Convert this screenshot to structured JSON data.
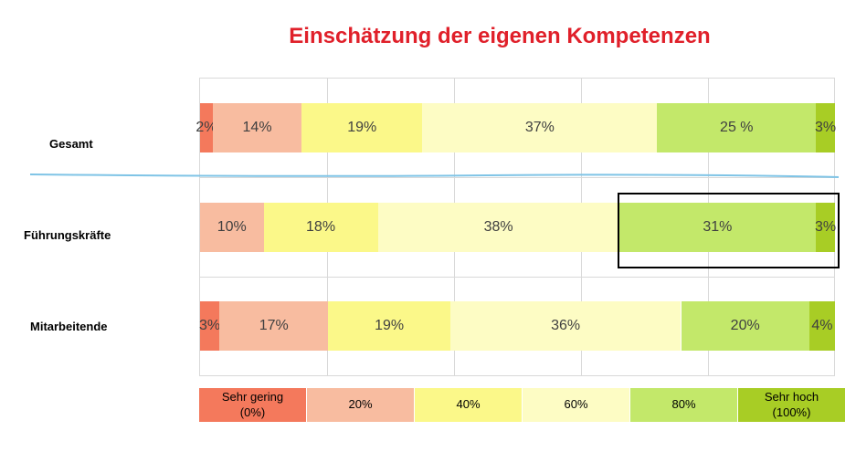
{
  "title": "Einschätzung der eigenen Kompetenzen",
  "colors": {
    "sehr_gering": "#f4795c",
    "level_20": "#f8bca0",
    "level_40": "#fbf889",
    "level_60": "#fdfcc4",
    "level_80": "#c3e86a",
    "sehr_hoch": "#a8cd25",
    "title": "#e0202a",
    "separator": "#7fc4e6"
  },
  "chart_data": {
    "type": "bar",
    "orientation": "horizontal",
    "stacked": true,
    "percent": true,
    "title": "Einschätzung der eigenen Kompetenzen",
    "categories": [
      "Gesamt",
      "Führungskräfte",
      "Mitarbeitende"
    ],
    "series": [
      {
        "name": "Sehr gering\n(0%)",
        "color_key": "sehr_gering",
        "values": [
          2,
          0,
          3
        ],
        "labels": [
          "2%",
          "",
          "3%"
        ]
      },
      {
        "name": "20%",
        "color_key": "level_20",
        "values": [
          14,
          10,
          17
        ],
        "labels": [
          "14%",
          "10%",
          "17%"
        ]
      },
      {
        "name": "40%",
        "color_key": "level_40",
        "values": [
          19,
          18,
          19
        ],
        "labels": [
          "19%",
          "18%",
          "19%"
        ]
      },
      {
        "name": "60%",
        "color_key": "level_60",
        "values": [
          37,
          38,
          36
        ],
        "labels": [
          "37%",
          "38%",
          "36%"
        ]
      },
      {
        "name": "80%",
        "color_key": "level_80",
        "values": [
          25,
          31,
          20
        ],
        "labels": [
          "25 %",
          "31%",
          "20%"
        ]
      },
      {
        "name": "Sehr hoch\n(100%)",
        "color_key": "sehr_hoch",
        "values": [
          3,
          3,
          4
        ],
        "labels": [
          "3%",
          "3%",
          "4%"
        ]
      }
    ],
    "xlim": [
      0,
      100
    ],
    "grid": true,
    "legend": "bottom",
    "highlight": {
      "category": "Führungskräfte",
      "series": [
        "80%",
        "Sehr hoch\n(100%)"
      ]
    }
  }
}
